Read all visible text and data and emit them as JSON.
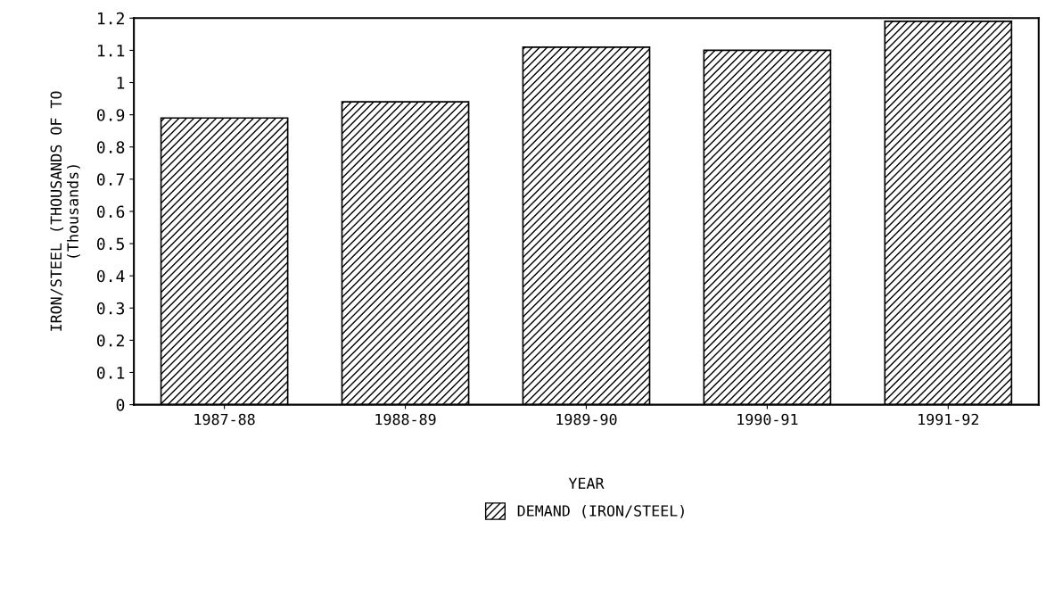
{
  "chart_data": {
    "type": "bar",
    "xlabel": "YEAR",
    "ylabel": "IRON/STEEL (THOUSANDS OF TO\n(Thousands)",
    "categories": [
      "1987-88",
      "1988-89",
      "1989-90",
      "1990-91",
      "1991-92"
    ],
    "series": [
      {
        "name": "DEMAND (IRON/STEEL)",
        "color": "#000000",
        "values": [
          0.89,
          0.94,
          1.11,
          1.1,
          1.19
        ]
      }
    ],
    "ylim": [
      0,
      1.2
    ],
    "yticks": [
      0,
      0.1,
      0.2,
      0.3,
      0.4,
      0.5,
      0.6,
      0.7,
      0.8,
      0.9,
      1,
      1.1,
      1.2
    ],
    "grid": false,
    "legend": "bottom"
  }
}
